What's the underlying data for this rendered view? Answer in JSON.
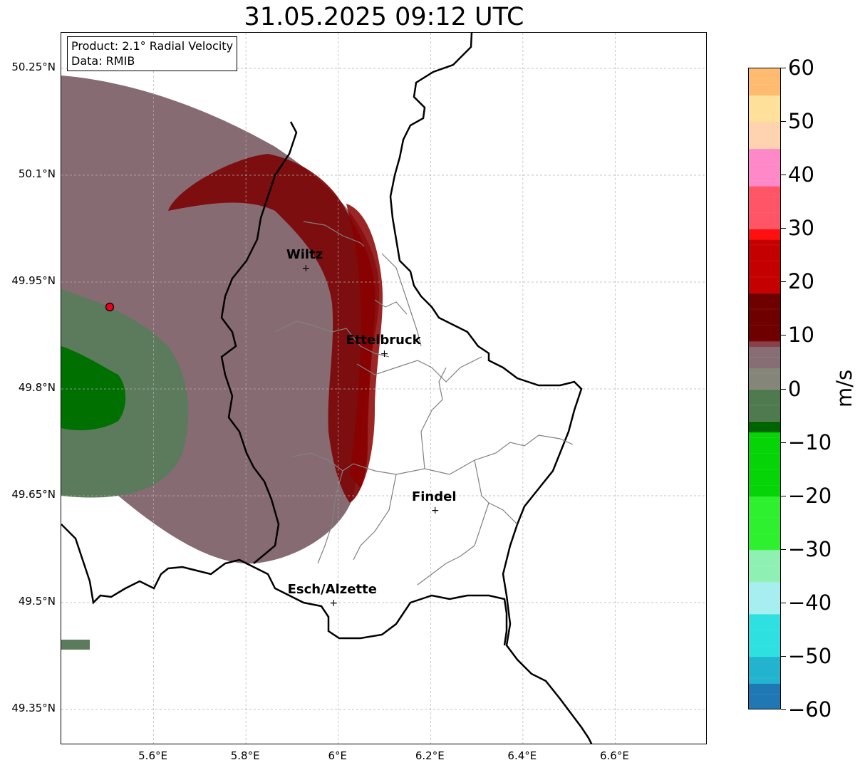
{
  "title": "31.05.2025 09:12 UTC",
  "info_box": {
    "product": "Product: 2.1° Radial Velocity",
    "data": "Data: RMIB"
  },
  "axes": {
    "lat_ticks": [
      "50.25°N",
      "50.1°N",
      "49.95°N",
      "49.8°N",
      "49.65°N",
      "49.5°N",
      "49.35°N"
    ],
    "lon_ticks": [
      "5.6°E",
      "5.8°E",
      "6°E",
      "6.2°E",
      "6.4°E",
      "6.6°E"
    ],
    "lon_range": [
      5.4,
      6.8
    ],
    "lat_range": [
      49.3,
      50.3
    ]
  },
  "cities": [
    {
      "name": "Wiltz",
      "lon": 5.93,
      "lat": 49.97
    },
    {
      "name": "Ettelbruck",
      "lon": 6.1,
      "lat": 49.85
    },
    {
      "name": "Findel",
      "lon": 6.21,
      "lat": 49.63
    },
    {
      "name": "Esch/Alzette",
      "lon": 5.99,
      "lat": 49.5
    }
  ],
  "radar_site": {
    "lon": 5.505,
    "lat": 49.915,
    "color": "#e8001c"
  },
  "colorbar": {
    "unit": "m/s",
    "min": -60,
    "max": 60,
    "tick_labels": [
      "60",
      "50",
      "40",
      "30",
      "20",
      "10",
      "0",
      "−10",
      "−20",
      "−30",
      "−40",
      "−50",
      "−60"
    ],
    "stops": [
      {
        "v": -60,
        "color": "#1f78b4"
      },
      {
        "v": -55,
        "color": "#22b3cf"
      },
      {
        "v": -50,
        "color": "#2ee0e0"
      },
      {
        "v": -42,
        "color": "#a6eef0"
      },
      {
        "v": -36,
        "color": "#8ff0b4"
      },
      {
        "v": -30,
        "color": "#2ef02e"
      },
      {
        "v": -20,
        "color": "#06d406"
      },
      {
        "v": -8,
        "color": "#006400"
      },
      {
        "v": -6,
        "color": "#4f7a4f"
      },
      {
        "v": 0,
        "color": "#85857a"
      },
      {
        "v": 4,
        "color": "#866e74"
      },
      {
        "v": 8,
        "color": "#8a4048"
      },
      {
        "v": 9,
        "color": "#6e0000"
      },
      {
        "v": 18,
        "color": "#c40000"
      },
      {
        "v": 28,
        "color": "#ff1010"
      },
      {
        "v": 30,
        "color": "#ff5566"
      },
      {
        "v": 38,
        "color": "#ff88c8"
      },
      {
        "v": 45,
        "color": "#ffd2b0"
      },
      {
        "v": 50,
        "color": "#ffe09a"
      },
      {
        "v": 55,
        "color": "#ffbb70"
      },
      {
        "v": 60,
        "color": "#ff9c54"
      }
    ]
  },
  "colors": {
    "country_border": "#000000",
    "canton_border": "#808080",
    "grid": "#b0b0b0",
    "receding_strong": "#7a0000",
    "receding_weak": "#8c6670",
    "approaching_weak": "#5f7f5f",
    "approaching_strong": "#007a00"
  }
}
